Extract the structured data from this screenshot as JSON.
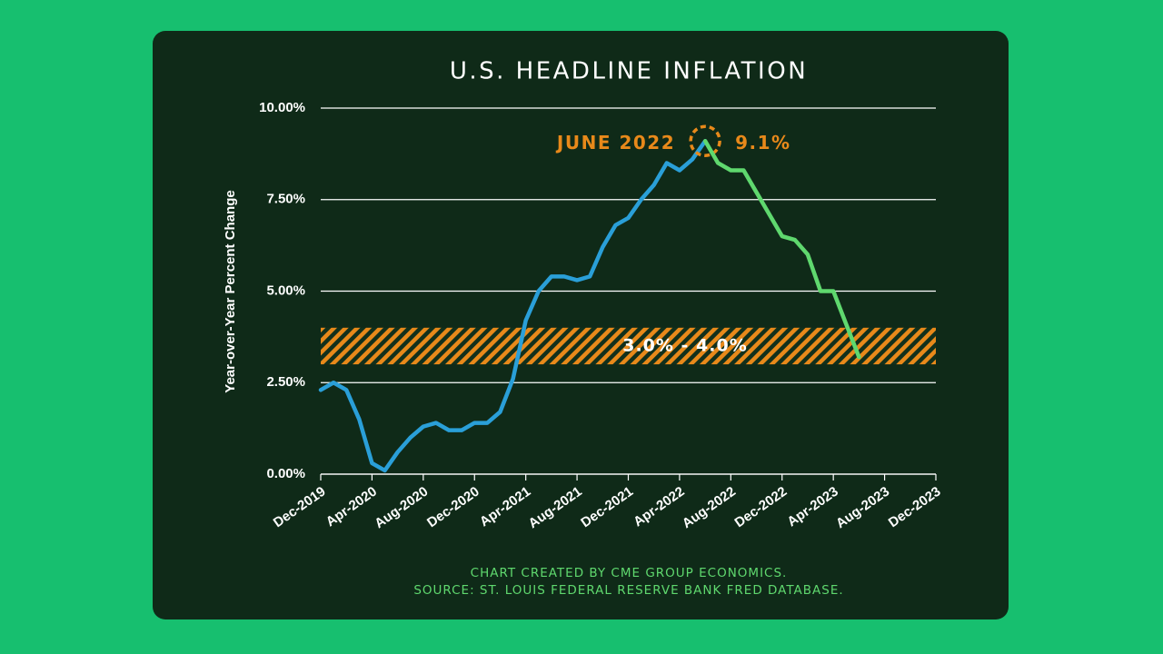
{
  "chart_data": {
    "type": "line",
    "title": "U.S. HEADLINE INFLATION",
    "y_label": "Year-over-Year Percent Change",
    "categories": [
      "Dec-2019",
      null,
      null,
      null,
      "Apr-2020",
      null,
      null,
      null,
      "Aug-2020",
      null,
      null,
      null,
      "Dec-2020",
      null,
      null,
      null,
      "Apr-2021",
      null,
      null,
      null,
      "Aug-2021",
      null,
      null,
      null,
      "Dec-2021",
      null,
      null,
      null,
      "Apr-2022",
      null,
      null,
      null,
      "Aug-2022",
      null,
      null,
      null,
      "Dec-2022",
      null,
      null,
      null,
      "Apr-2023",
      null,
      null,
      null,
      "Aug-2023",
      null,
      null,
      null,
      "Dec-2023"
    ],
    "series": [
      {
        "color": "#2a9fd8",
        "values": [
          2.3,
          2.5,
          2.3,
          1.5,
          0.3,
          0.1,
          0.6,
          1.0,
          1.3,
          1.4,
          1.2,
          1.2,
          1.4,
          1.4,
          1.7,
          2.6,
          4.2,
          5.0,
          5.4,
          5.4,
          5.3,
          5.4,
          6.2,
          6.8,
          7.0,
          7.5,
          7.9,
          8.5,
          8.3,
          8.6,
          9.1,
          null,
          null,
          null,
          null,
          null,
          null,
          null,
          null,
          null,
          null,
          null,
          null,
          null,
          null,
          null,
          null,
          null,
          null
        ],
        "value_labels": [
          null,
          null,
          null,
          null,
          null,
          null,
          null,
          null,
          null,
          null,
          null,
          null,
          null,
          null,
          null,
          null,
          null,
          null,
          null,
          null,
          null,
          null,
          null,
          null,
          null,
          null,
          null,
          null,
          null,
          null,
          "9.1%",
          null,
          null,
          null,
          null,
          null,
          null,
          null,
          null,
          null,
          null,
          null,
          null,
          null,
          null,
          null,
          null,
          null,
          null
        ]
      },
      {
        "color": "#5fd86e",
        "values": [
          null,
          null,
          null,
          null,
          null,
          null,
          null,
          null,
          null,
          null,
          null,
          null,
          null,
          null,
          null,
          null,
          null,
          null,
          null,
          null,
          null,
          null,
          null,
          null,
          null,
          null,
          null,
          null,
          null,
          null,
          9.1,
          8.5,
          8.3,
          8.3,
          7.7,
          7.1,
          6.5,
          6.4,
          6.0,
          5.0,
          5.0,
          4.1,
          3.2,
          null,
          null,
          null,
          null,
          null,
          null
        ]
      }
    ],
    "annotation": "JUNE 2022",
    "band": {
      "range": [
        3,
        4
      ],
      "label": "3.0% - 4.0%",
      "color": "#e8891a"
    },
    "ylim": [
      0,
      10
    ],
    "yticks": [
      {
        "value": 0,
        "label": "0.00%"
      },
      {
        "value": 2.5,
        "label": "2.50%"
      },
      {
        "value": 5,
        "label": "5.00%"
      },
      {
        "value": 7.5,
        "label": "7.50%"
      },
      {
        "value": 10,
        "label": "10.00%"
      }
    ],
    "grid": true,
    "notes": [
      "CHART CREATED BY CME GROUP ECONOMICS.",
      "SOURCE: ST. LOUIS FEDERAL RESERVE BANK FRED DATABASE."
    ]
  }
}
